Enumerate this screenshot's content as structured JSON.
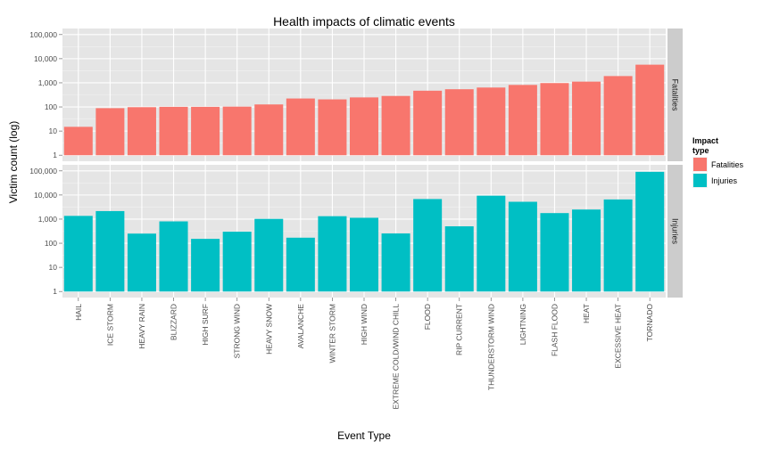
{
  "chart_data": {
    "type": "bar",
    "title": "Health impacts of climatic events",
    "xlabel": "Event Type",
    "ylabel": "Victim count (log)",
    "y_scale": "log10",
    "ylim": [
      1,
      100000
    ],
    "y_ticks": [
      1,
      10,
      100,
      1000,
      10000,
      100000
    ],
    "y_tick_labels": [
      "1",
      "10",
      "100",
      "1,000",
      "10,000",
      "100,000"
    ],
    "grid": true,
    "legend_position": "right",
    "legend_title": "Impact type",
    "facet_layout": "rows",
    "categories": [
      "HAIL",
      "ICE STORM",
      "HEAVY RAIN",
      "BLIZZARD",
      "HIGH SURF",
      "STRONG WIND",
      "HEAVY SNOW",
      "AVALANCHE",
      "WINTER STORM",
      "HIGH WIND",
      "EXTREME COLD/WIND CHILL",
      "FLOOD",
      "RIP CURRENT",
      "THUNDERSTORM WIND",
      "LIGHTNING",
      "FLASH FLOOD",
      "HEAT",
      "EXCESSIVE HEAT",
      "TORNADO"
    ],
    "series": [
      {
        "name": "Fatalities",
        "color": "#F8766D",
        "values": [
          15,
          89,
          98,
          101,
          101,
          103,
          127,
          224,
          206,
          248,
          285,
          470,
          542,
          637,
          817,
          978,
          1118,
          1903,
          5633
        ]
      },
      {
        "name": "Injuries",
        "color": "#00BFC4",
        "values": [
          1361,
          2152,
          251,
          805,
          152,
          301,
          1021,
          170,
          1321,
          1137,
          255,
          6789,
          503,
          9353,
          5230,
          1777,
          2494,
          6525,
          91346
        ]
      }
    ]
  }
}
